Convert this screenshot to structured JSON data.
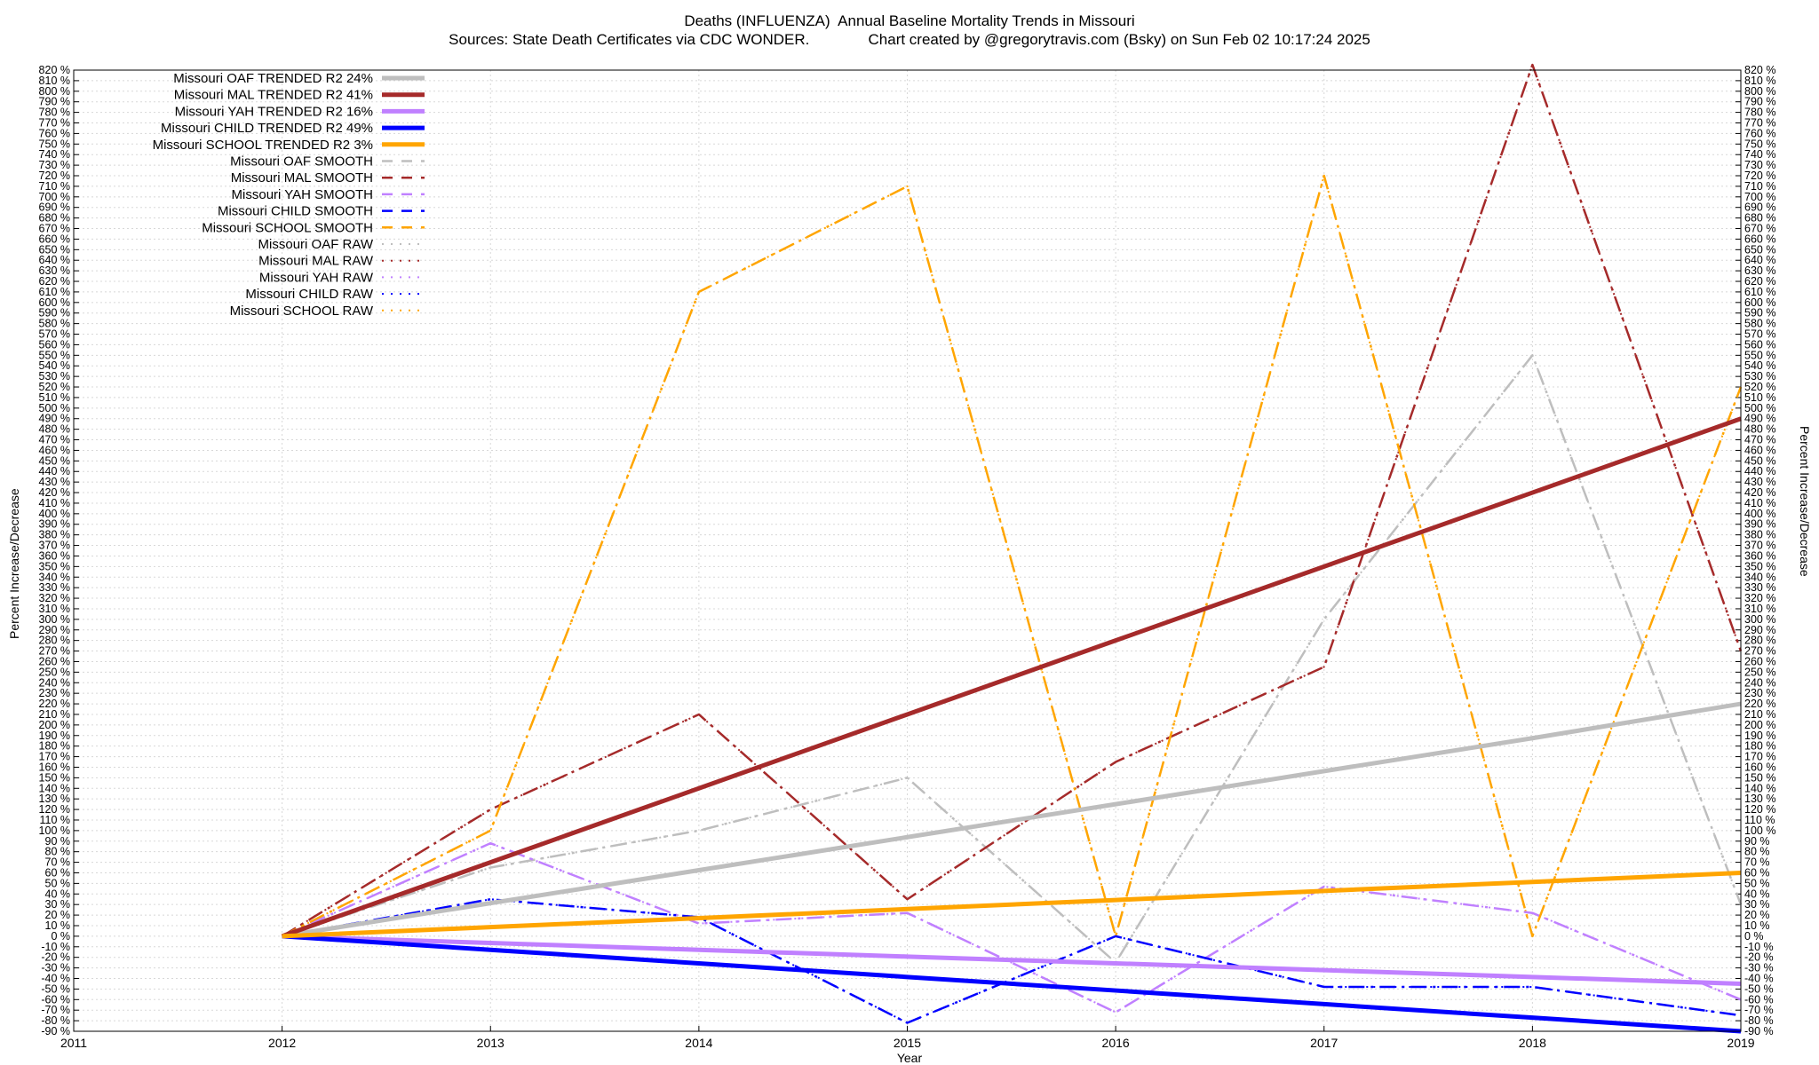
{
  "chart_data": {
    "type": "line",
    "title": "Deaths (INFLUENZA)  Annual Baseline Mortality Trends in Missouri",
    "subtitle": "Sources: State Death Certificates via CDC WONDER.              Chart created by @gregorytravis.com (Bsky) on Sun Feb 02 10:17:24 2025",
    "xlabel": "Year",
    "ylabel": "Percent Increase/Decrease",
    "y2label": "Percent Increase/Decrease",
    "xlim": [
      2011,
      2019
    ],
    "ylim": [
      -90,
      820
    ],
    "x_ticks": [
      2011,
      2012,
      2013,
      2014,
      2015,
      2016,
      2017,
      2018,
      2019
    ],
    "y_tick_step": 10,
    "y_tick_suffix": " %",
    "grid": true,
    "legend_position": "top-left",
    "x": [
      2012,
      2013,
      2014,
      2015,
      2016,
      2017,
      2018,
      2019
    ],
    "series": [
      {
        "name": "Missouri OAF TRENDED R2  24%",
        "style": "trend",
        "color": "#bebebe",
        "values": [
          0,
          31.3,
          62.5,
          93.8,
          125,
          156.3,
          187.5,
          220
        ]
      },
      {
        "name": "Missouri MAL TRENDED R2  41%",
        "style": "trend",
        "color": "#a52a2a",
        "values": [
          0,
          70,
          140,
          210,
          280,
          350,
          420,
          490
        ]
      },
      {
        "name": "Missouri YAH TRENDED R2  16%",
        "style": "trend",
        "color": "#c080ff",
        "values": [
          0,
          -6.4,
          -12.9,
          -19.3,
          -25.7,
          -32.1,
          -38.6,
          -45
        ]
      },
      {
        "name": "Missouri CHILD TRENDED R2  49%",
        "style": "trend",
        "color": "#0000ff",
        "values": [
          0,
          -12.9,
          -25.7,
          -38.6,
          -51.4,
          -64.3,
          -77.1,
          -90
        ]
      },
      {
        "name": "Missouri SCHOOL TRENDED R2   3%",
        "style": "trend",
        "color": "#ffa500",
        "values": [
          0,
          8.6,
          17.1,
          25.7,
          34.3,
          42.9,
          51.4,
          60
        ]
      },
      {
        "name": "Missouri OAF SMOOTH",
        "style": "smooth",
        "color": "#bebebe",
        "values": [
          0,
          65,
          100,
          150,
          -25,
          300,
          550,
          30
        ]
      },
      {
        "name": "Missouri MAL SMOOTH",
        "style": "smooth",
        "color": "#a52a2a",
        "values": [
          0,
          120,
          210,
          35,
          165,
          255,
          825,
          270
        ]
      },
      {
        "name": "Missouri YAH SMOOTH",
        "style": "smooth",
        "color": "#c080ff",
        "values": [
          0,
          88,
          12,
          22,
          -72,
          47,
          22,
          -60
        ]
      },
      {
        "name": "Missouri CHILD SMOOTH",
        "style": "smooth",
        "color": "#0000ff",
        "values": [
          0,
          35,
          18,
          -82,
          0,
          -48,
          -48,
          -75
        ]
      },
      {
        "name": "Missouri SCHOOL SMOOTH",
        "style": "smooth",
        "color": "#ffa500",
        "values": [
          0,
          100,
          610,
          710,
          0,
          720,
          0,
          520
        ]
      },
      {
        "name": "Missouri OAF RAW",
        "style": "raw",
        "color": "#bebebe",
        "values": [
          0,
          65,
          100,
          150,
          -25,
          300,
          550,
          30
        ]
      },
      {
        "name": "Missouri MAL RAW",
        "style": "raw",
        "color": "#a52a2a",
        "values": [
          0,
          120,
          210,
          35,
          165,
          255,
          825,
          270
        ]
      },
      {
        "name": "Missouri YAH RAW",
        "style": "raw",
        "color": "#c080ff",
        "values": [
          0,
          88,
          12,
          22,
          -72,
          47,
          22,
          -60
        ]
      },
      {
        "name": "Missouri CHILD RAW",
        "style": "raw",
        "color": "#0000ff",
        "values": [
          0,
          35,
          18,
          -82,
          0,
          -48,
          -48,
          -75
        ]
      },
      {
        "name": "Missouri SCHOOL RAW",
        "style": "raw",
        "color": "#ffa500",
        "values": [
          0,
          100,
          610,
          710,
          0,
          720,
          0,
          520
        ]
      }
    ]
  }
}
